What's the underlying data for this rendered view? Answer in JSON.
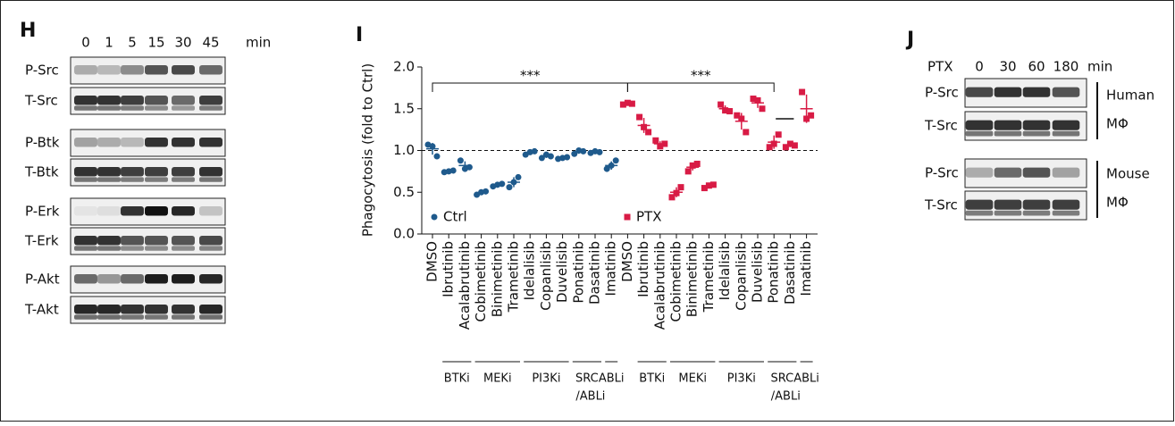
{
  "panel_h": {
    "label": "H",
    "times": [
      "0",
      "1",
      "5",
      "15",
      "30",
      "45"
    ],
    "unit": "min",
    "rows": [
      "P-Src",
      "T-Src",
      "P-Btk",
      "T-Btk",
      "P-Erk",
      "T-Erk",
      "P-Akt",
      "T-Akt"
    ]
  },
  "chart_data": {
    "type": "dot",
    "panel_label": "I",
    "y_label": "Phagocytosis (fold to Ctrl)",
    "categories": [
      "DMSO",
      "Ibrutinib",
      "Acalabrutinib",
      "Cobimetinib",
      "Binimetinib",
      "Trametinib",
      "Idelalisib",
      "Copanlisib",
      "Duvelisib",
      "Ponatinib",
      "Dasatinib",
      "Imatinib",
      "DMSO",
      "Ibrutinib",
      "Acalabrutinib",
      "Cobimetinib",
      "Binimetinib",
      "Trametinib",
      "Idelalisib",
      "Copanlisib",
      "Duvelisib",
      "Ponatinib",
      "Dasatinib",
      "Imatinib"
    ],
    "series": [
      {
        "name": "Ctrl",
        "color": "#1f5a8c",
        "marker": "circle",
        "values": [
          1.02,
          0.75,
          0.82,
          0.49,
          0.58,
          0.62,
          0.97,
          0.93,
          0.91,
          0.98,
          0.98,
          0.82,
          null,
          null,
          null,
          null,
          null,
          null,
          null,
          null,
          null,
          null,
          null,
          null
        ],
        "errors": [
          0.07,
          0.01,
          0.05,
          0.02,
          0.02,
          0.06,
          0.02,
          0.02,
          0.01,
          0.02,
          0.01,
          0.05,
          null,
          null,
          null,
          null,
          null,
          null,
          null,
          null,
          null,
          null,
          null,
          null
        ],
        "points": [
          [
            1.07,
            1.05,
            0.93
          ],
          [
            0.74,
            0.75,
            0.76
          ],
          [
            0.88,
            0.78,
            0.8
          ],
          [
            0.47,
            0.5,
            0.51
          ],
          [
            0.57,
            0.59,
            0.6
          ],
          [
            0.56,
            0.62,
            0.68
          ],
          [
            0.95,
            0.98,
            0.99
          ],
          [
            0.91,
            0.95,
            0.93
          ],
          [
            0.9,
            0.91,
            0.92
          ],
          [
            0.96,
            1.0,
            0.99
          ],
          [
            0.97,
            0.99,
            0.98
          ],
          [
            0.78,
            0.82,
            0.88
          ],
          null,
          null,
          null,
          null,
          null,
          null,
          null,
          null,
          null,
          null,
          null,
          null
        ]
      },
      {
        "name": "PTX",
        "color": "#d81b45",
        "marker": "square",
        "values": [
          null,
          null,
          null,
          null,
          null,
          null,
          null,
          null,
          null,
          null,
          null,
          null,
          1.56,
          1.3,
          1.08,
          0.5,
          0.8,
          0.57,
          1.5,
          1.35,
          1.57,
          1.1,
          1.06,
          1.5
        ],
        "errors": [
          null,
          null,
          null,
          null,
          null,
          null,
          null,
          null,
          null,
          null,
          null,
          null,
          0.01,
          0.09,
          0.03,
          0.06,
          0.04,
          0.02,
          0.04,
          0.1,
          0.06,
          0.08,
          0.02,
          0.17
        ],
        "points": [
          null,
          null,
          null,
          null,
          null,
          null,
          null,
          null,
          null,
          null,
          null,
          null,
          [
            1.55,
            1.57,
            1.56
          ],
          [
            1.4,
            1.28,
            1.22
          ],
          [
            1.12,
            1.05,
            1.08
          ],
          [
            0.44,
            0.49,
            0.56
          ],
          [
            0.75,
            0.82,
            0.84
          ],
          [
            0.55,
            0.58,
            0.59
          ],
          [
            1.55,
            1.48,
            1.47
          ],
          [
            1.42,
            1.38,
            1.22
          ],
          [
            1.62,
            1.6,
            1.5
          ],
          [
            1.04,
            1.08,
            1.19
          ],
          [
            1.04,
            1.08,
            1.06
          ],
          [
            1.7,
            1.38,
            1.42
          ]
        ]
      }
    ],
    "ylim": [
      0,
      2.0
    ],
    "yticks": [
      0.0,
      0.5,
      1.0,
      1.5,
      2.0
    ],
    "reference_line": 1.0,
    "groups": [
      [
        "BTKi"
      ],
      [
        "MEKi"
      ],
      [
        "PI3Ki"
      ],
      [
        "SRC",
        "/ABLi"
      ],
      [
        "ABLi"
      ],
      [
        "BTKi"
      ],
      [
        "MEKi"
      ],
      [
        "PI3Ki"
      ],
      [
        "SRC",
        "/ABLi"
      ],
      [
        "ABLi"
      ]
    ],
    "significance": [
      "***",
      "***"
    ]
  },
  "panel_j": {
    "label": "J",
    "treatment": "PTX",
    "times": [
      "0",
      "30",
      "60",
      "180"
    ],
    "unit": "min",
    "rows": [
      "P-Src",
      "T-Src",
      "P-Src",
      "T-Src"
    ],
    "cells": [
      [
        "Human",
        "MΦ"
      ],
      [
        "Mouse",
        "MΦ"
      ]
    ]
  }
}
